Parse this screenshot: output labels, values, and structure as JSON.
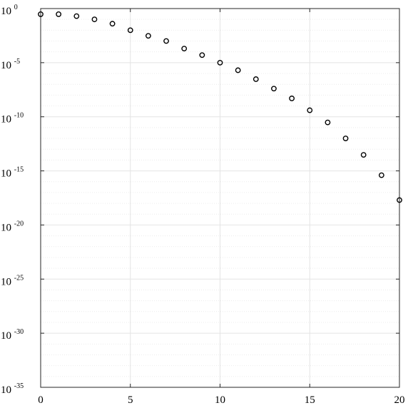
{
  "chart_data": {
    "type": "scatter",
    "title": "",
    "xlabel": "",
    "ylabel": "",
    "xlim": [
      0,
      20
    ],
    "ylim": [
      1e-35,
      1
    ],
    "yscale": "log",
    "grid": true,
    "marker": "open-circle",
    "marker_color": "#000000",
    "x_ticks": [
      0,
      5,
      10,
      15,
      20
    ],
    "x_tick_labels": [
      "0",
      "5",
      "10",
      "15",
      "20"
    ],
    "y_ticks": [
      -35,
      -30,
      -25,
      -20,
      -15,
      -10,
      -5,
      0
    ],
    "y_tick_labels": [
      {
        "base": "10",
        "exp": "-35"
      },
      {
        "base": "10",
        "exp": "-30"
      },
      {
        "base": "10",
        "exp": "-25"
      },
      {
        "base": "10",
        "exp": "-20"
      },
      {
        "base": "10",
        "exp": "-15"
      },
      {
        "base": "10",
        "exp": "-10"
      },
      {
        "base": "10",
        "exp": "-5"
      },
      {
        "base": "10",
        "exp": "0"
      }
    ],
    "series": [
      {
        "x": [
          0,
          1,
          2,
          3,
          4,
          5,
          6,
          7,
          8,
          9,
          10,
          11,
          12,
          13,
          14,
          15,
          16,
          17,
          18,
          19,
          20
        ],
        "y": [
          0.3,
          0.3,
          0.2,
          0.1,
          0.04,
          0.01,
          0.003,
          0.001,
          0.0002,
          5e-05,
          1e-05,
          2e-06,
          3e-07,
          4e-08,
          5e-09,
          4e-10,
          3e-11,
          1e-12,
          3e-14,
          4e-16,
          2e-18
        ]
      }
    ]
  }
}
